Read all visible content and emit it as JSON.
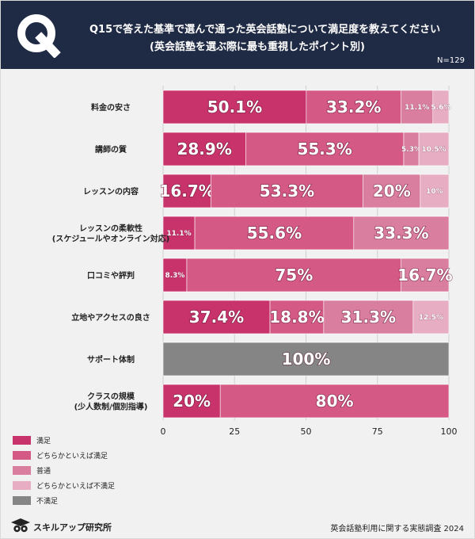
{
  "header": {
    "badge": "Q",
    "title_line1": "Q15で答えた基準で選んで通った英会話塾について満足度を教えてください",
    "title_line2": "(英会話塾を選ぶ際に最も重視したポイント別)",
    "sample_size": "N=129"
  },
  "chart_data": {
    "type": "bar",
    "orientation": "horizontal",
    "stacked": true,
    "categories": [
      "料金の安さ",
      "講師の質",
      "レッスンの内容",
      "レッスンの柔軟性\n(スケジュールやオンライン対応)",
      "口コミや評判",
      "立地やアクセスの良さ",
      "サポート体制",
      "クラスの規模\n(少人数制/個別指導)"
    ],
    "series": [
      {
        "name": "満足",
        "color": "#c8336c",
        "values": [
          50.1,
          28.9,
          16.7,
          11.1,
          8.3,
          37.4,
          0,
          20
        ]
      },
      {
        "name": "どちらかといえば満足",
        "color": "#d45a85",
        "values": [
          33.2,
          55.3,
          53.3,
          55.6,
          75,
          18.8,
          0,
          80
        ]
      },
      {
        "name": "普通",
        "color": "#da7ea0",
        "values": [
          11.1,
          5.3,
          20,
          33.3,
          16.7,
          31.3,
          0,
          0
        ]
      },
      {
        "name": "どちらかといえば不満足",
        "color": "#e7aec3",
        "values": [
          5.6,
          10.5,
          10,
          0,
          0,
          12.5,
          0,
          0
        ]
      },
      {
        "name": "不満足",
        "color": "#858585",
        "values": [
          0,
          0,
          0,
          0,
          0,
          0,
          100,
          0
        ]
      }
    ],
    "data_labels": [
      [
        "50.1%",
        "33.2%",
        "11.1%",
        "5.6%",
        ""
      ],
      [
        "28.9%",
        "55.3%",
        "5.3%",
        "10.5%",
        ""
      ],
      [
        "16.7%",
        "53.3%",
        "20%",
        "10%",
        ""
      ],
      [
        "11.1%",
        "55.6%",
        "33.3%",
        "",
        ""
      ],
      [
        "8.3%",
        "75%",
        "16.7%",
        "",
        ""
      ],
      [
        "37.4%",
        "18.8%",
        "31.3%",
        "12.5%",
        ""
      ],
      [
        "",
        "",
        "",
        "",
        "100%"
      ],
      [
        "20%",
        "80%",
        "",
        "",
        ""
      ]
    ],
    "xlim": [
      0,
      100
    ],
    "xticks": [
      "0",
      "25",
      "50",
      "75",
      "100"
    ],
    "grid": true,
    "legend_position": "bottom-left"
  },
  "footer": {
    "logo_text": "スキルアップ研究所",
    "credit": "英会話塾利用に関する実態調査 2024"
  }
}
